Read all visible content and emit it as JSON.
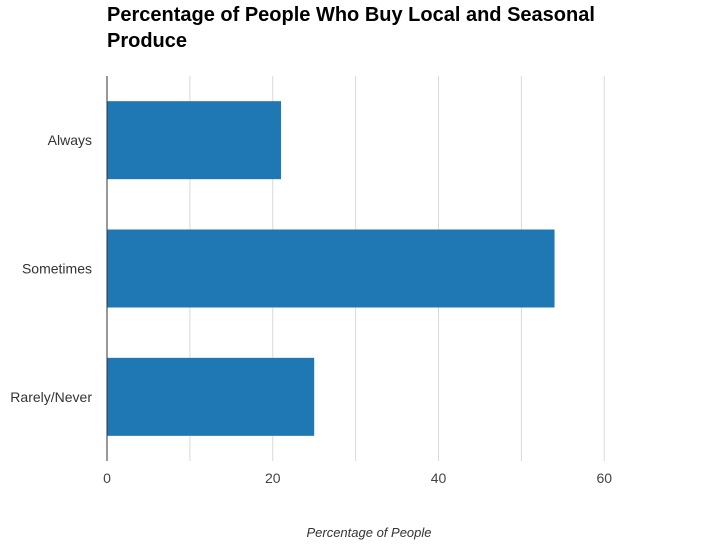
{
  "chart_data": {
    "type": "bar",
    "orientation": "horizontal",
    "title_lines": [
      "Percentage of People Who Buy Local and Seasonal",
      "Produce"
    ],
    "title": "Percentage of People Who Buy Local and Seasonal Produce",
    "xlabel": "Percentage of People",
    "ylabel": "",
    "categories": [
      "Always",
      "Sometimes",
      "Rarely/Never"
    ],
    "values": [
      21,
      54,
      25
    ],
    "xlim": [
      0,
      66
    ],
    "x_ticks": [
      0,
      20,
      40,
      60
    ],
    "grid": "vertical",
    "bar_color": "#1f77b4",
    "grid_color": "#d9d9d9",
    "axis_color": "#333333"
  }
}
